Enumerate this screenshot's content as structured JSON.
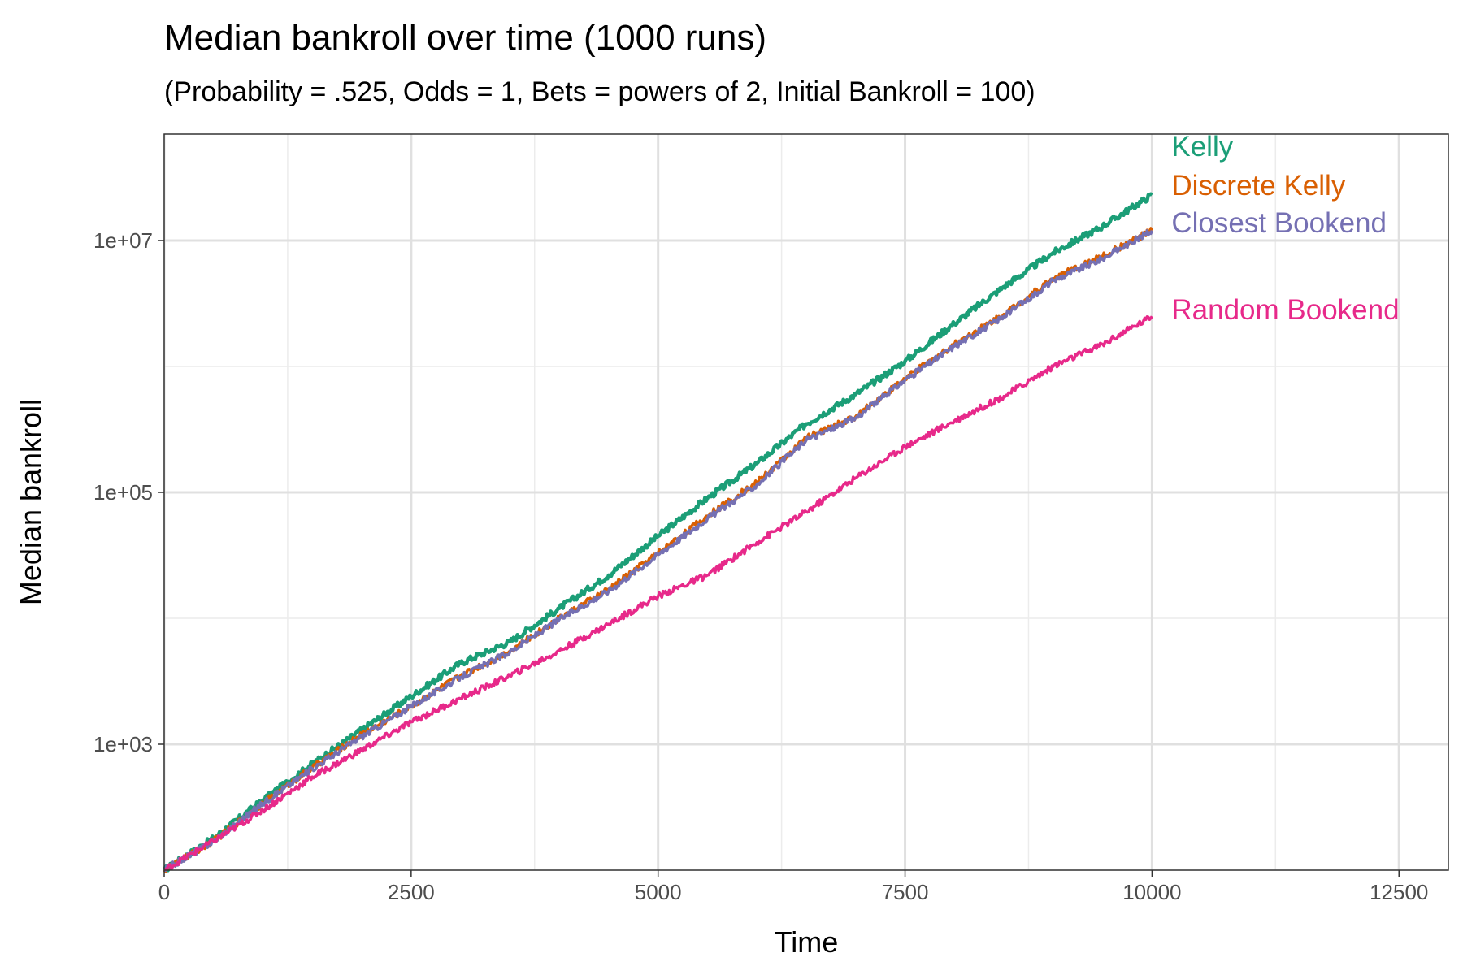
{
  "title": "Median bankroll over time (1000 runs)",
  "subtitle": "(Probability = .525, Odds = 1, Bets = powers of 2, Initial Bankroll = 100)",
  "chart_data": {
    "type": "line",
    "xlabel": "Time",
    "ylabel": "Median bankroll",
    "xlim": [
      0,
      13000
    ],
    "ylim": [
      100,
      70000000
    ],
    "yscale": "log10",
    "x_ticks": [
      0,
      2500,
      5000,
      7500,
      10000,
      12500
    ],
    "x_tick_labels": [
      "0",
      "2500",
      "5000",
      "7500",
      "10000",
      "12500"
    ],
    "y_ticks": [
      1000,
      100000,
      10000000
    ],
    "y_tick_labels": [
      "1e+03",
      "1e+05",
      "1e+07"
    ],
    "grid": true,
    "legend": "direct labels at line ends",
    "series": [
      {
        "name": "Kelly",
        "color": "#1b9e77",
        "x": [
          0,
          500,
          1000,
          1500,
          2000,
          2500,
          3000,
          3500,
          4000,
          4500,
          5000,
          5500,
          6000,
          6500,
          7000,
          7500,
          8000,
          8500,
          9000,
          9500,
          10000
        ],
        "y": [
          100,
          180,
          360,
          700,
          1300,
          2400,
          4400,
          6500,
          12000,
          22000,
          45000,
          90000,
          170000,
          350000,
          600000,
          1100000,
          2200000,
          4300000,
          8000000,
          13000000,
          23000000
        ]
      },
      {
        "name": "Discrete Kelly",
        "color": "#d95f02",
        "x": [
          0,
          500,
          1000,
          1500,
          2000,
          2500,
          3000,
          3500,
          4000,
          4500,
          5000,
          5500,
          6000,
          6500,
          7000,
          7500,
          8000,
          8500,
          9000,
          9500,
          10000
        ],
        "y": [
          100,
          170,
          340,
          650,
          1200,
          2000,
          3500,
          5500,
          10000,
          17000,
          33000,
          65000,
          120000,
          270000,
          400000,
          800000,
          1500000,
          2600000,
          5000000,
          7500000,
          12000000
        ]
      },
      {
        "name": "Closest Bookend",
        "color": "#7570b3",
        "x": [
          0,
          500,
          1000,
          1500,
          2000,
          2500,
          3000,
          3500,
          4000,
          4500,
          5000,
          5500,
          6000,
          6500,
          7000,
          7500,
          8000,
          8500,
          9000,
          9500,
          10000
        ],
        "y": [
          100,
          170,
          340,
          640,
          1150,
          2000,
          3400,
          5400,
          9800,
          16500,
          32000,
          62000,
          115000,
          260000,
          390000,
          780000,
          1450000,
          2500000,
          4800000,
          7200000,
          12000000
        ]
      },
      {
        "name": "Random Bookend",
        "color": "#e7298a",
        "x": [
          0,
          500,
          1000,
          1500,
          2000,
          2500,
          3000,
          3500,
          4000,
          4500,
          5000,
          5500,
          6000,
          6500,
          7000,
          7500,
          8000,
          8500,
          9000,
          9500,
          10000
        ],
        "y": [
          100,
          170,
          300,
          550,
          900,
          1500,
          2300,
          3500,
          5500,
          9000,
          15000,
          22000,
          40000,
          70000,
          130000,
          230000,
          370000,
          580000,
          1000000,
          1500000,
          2500000
        ]
      }
    ]
  }
}
